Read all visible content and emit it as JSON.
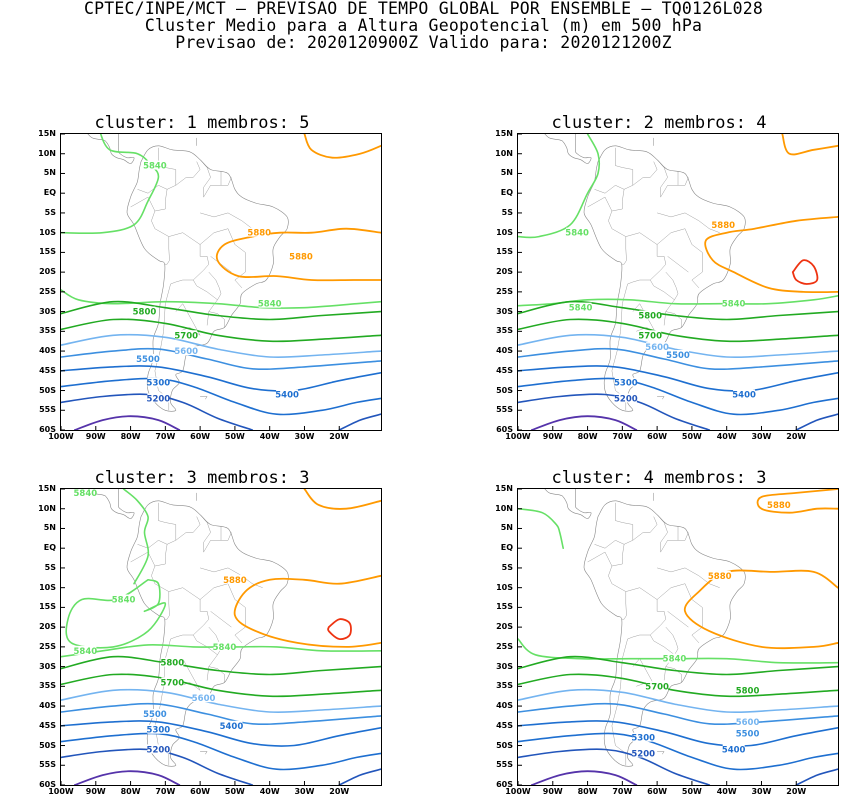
{
  "header": {
    "line1": "CPTEC/INPE/MCT – PREVISAO DE TEMPO GLOBAL POR ENSEMBLE – TQ0126L028",
    "line2": "Cluster Medio para a Altura Geopotencial (m) em 500 hPa",
    "line3": "Previsao de: 2020120900Z    Valido para: 2020121200Z"
  },
  "axes": {
    "lat_labels": [
      "15N",
      "10N",
      "5N",
      "EQ",
      "5S",
      "10S",
      "15S",
      "20S",
      "25S",
      "30S",
      "35S",
      "40S",
      "45S",
      "50S",
      "55S",
      "60S"
    ],
    "lon_labels": [
      "100W",
      "90W",
      "80W",
      "70W",
      "60W",
      "50W",
      "40W",
      "30W",
      "20W"
    ]
  },
  "colors": {
    "5200": "#2255bb",
    "5300": "#1e6fd0",
    "5400": "#1e6fd0",
    "5500": "#3c8fe0",
    "5600": "#74b4f0",
    "5700": "#22aa22",
    "5800": "#22aa22",
    "5840": "#66e066",
    "5880": "#ff9900",
    "5920": "#ee3311",
    "low": "#5533aa",
    "coast": "#888888"
  },
  "panels": [
    {
      "title": "cluster:  1   membros:  5",
      "labels": [
        {
          "text": "5840",
          "level": "5840",
          "lon": -73,
          "lat": 7
        },
        {
          "text": "5880",
          "level": "5880",
          "lon": -43,
          "lat": -10
        },
        {
          "text": "5880",
          "level": "5880",
          "lon": -31,
          "lat": -16
        },
        {
          "text": "5840",
          "level": "5840",
          "lon": -40,
          "lat": -28
        },
        {
          "text": "5800",
          "level": "5800",
          "lon": -76,
          "lat": -30
        },
        {
          "text": "5700",
          "level": "5700",
          "lon": -64,
          "lat": -36
        },
        {
          "text": "5600",
          "level": "5600",
          "lon": -64,
          "lat": -40
        },
        {
          "text": "5500",
          "level": "5500",
          "lon": -75,
          "lat": -42
        },
        {
          "text": "5300",
          "level": "5300",
          "lon": -72,
          "lat": -48
        },
        {
          "text": "5400",
          "level": "5400",
          "lon": -35,
          "lat": -51
        },
        {
          "text": "5200",
          "level": "5200",
          "lon": -72,
          "lat": -52
        }
      ]
    },
    {
      "title": "cluster:  2   membros:  4",
      "labels": [
        {
          "text": "5840",
          "level": "5840",
          "lon": -83,
          "lat": -10
        },
        {
          "text": "5880",
          "level": "5880",
          "lon": -41,
          "lat": -8
        },
        {
          "text": "5840",
          "level": "5840",
          "lon": -82,
          "lat": -29
        },
        {
          "text": "5840",
          "level": "5840",
          "lon": -38,
          "lat": -28
        },
        {
          "text": "5800",
          "level": "5800",
          "lon": -62,
          "lat": -31
        },
        {
          "text": "5700",
          "level": "5700",
          "lon": -62,
          "lat": -36
        },
        {
          "text": "5600",
          "level": "5600",
          "lon": -60,
          "lat": -39
        },
        {
          "text": "5500",
          "level": "5500",
          "lon": -54,
          "lat": -41
        },
        {
          "text": "5300",
          "level": "5300",
          "lon": -69,
          "lat": -48
        },
        {
          "text": "5400",
          "level": "5400",
          "lon": -35,
          "lat": -51
        },
        {
          "text": "5200",
          "level": "5200",
          "lon": -69,
          "lat": -52
        }
      ]
    },
    {
      "title": "cluster:  3   membros:  3",
      "labels": [
        {
          "text": "5840",
          "level": "5840",
          "lon": -93,
          "lat": 14
        },
        {
          "text": "5880",
          "level": "5880",
          "lon": -50,
          "lat": -8
        },
        {
          "text": "5840",
          "level": "5840",
          "lon": -82,
          "lat": -13
        },
        {
          "text": "5840",
          "level": "5840",
          "lon": -93,
          "lat": -26
        },
        {
          "text": "5840",
          "level": "5840",
          "lon": -53,
          "lat": -25
        },
        {
          "text": "5800",
          "level": "5800",
          "lon": -68,
          "lat": -29
        },
        {
          "text": "5700",
          "level": "5700",
          "lon": -68,
          "lat": -34
        },
        {
          "text": "5600",
          "level": "5600",
          "lon": -59,
          "lat": -38
        },
        {
          "text": "5500",
          "level": "5500",
          "lon": -73,
          "lat": -42
        },
        {
          "text": "5400",
          "level": "5400",
          "lon": -51,
          "lat": -45
        },
        {
          "text": "5300",
          "level": "5300",
          "lon": -72,
          "lat": -46
        },
        {
          "text": "5200",
          "level": "5200",
          "lon": -72,
          "lat": -51
        }
      ]
    },
    {
      "title": "cluster:  4   membros:  3",
      "labels": [
        {
          "text": "5880",
          "level": "5880",
          "lon": -25,
          "lat": 11
        },
        {
          "text": "5880",
          "level": "5880",
          "lon": -42,
          "lat": -7
        },
        {
          "text": "5840",
          "level": "5840",
          "lon": -55,
          "lat": -28
        },
        {
          "text": "5700",
          "level": "5700",
          "lon": -60,
          "lat": -35
        },
        {
          "text": "5800",
          "level": "5800",
          "lon": -34,
          "lat": -36
        },
        {
          "text": "5600",
          "level": "5600",
          "lon": -34,
          "lat": -44
        },
        {
          "text": "5500",
          "level": "5500",
          "lon": -34,
          "lat": -47
        },
        {
          "text": "5300",
          "level": "5300",
          "lon": -64,
          "lat": -48
        },
        {
          "text": "5400",
          "level": "5400",
          "lon": -38,
          "lat": -51
        },
        {
          "text": "5200",
          "level": "5200",
          "lon": -64,
          "lat": -52
        }
      ]
    }
  ]
}
